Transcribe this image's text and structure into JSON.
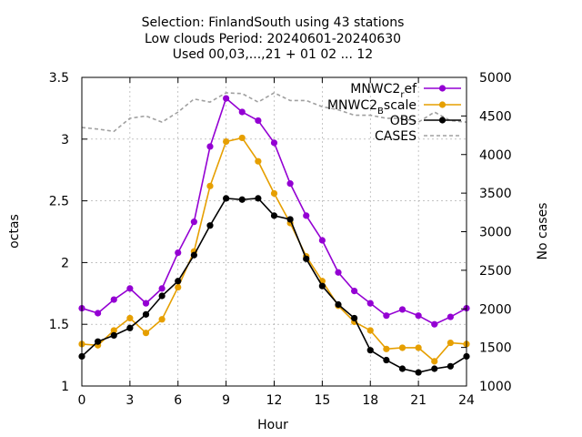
{
  "chart_data": {
    "type": "line",
    "title_lines": [
      "Selection: FinlandSouth using    43 stations",
      "Low clouds   Period: 20240601-20240630",
      "Used 00,03,...,21 + 01 02 ... 12"
    ],
    "xlabel": "Hour",
    "ylabel": "octas",
    "y2label": "No cases",
    "xlim": [
      0,
      24
    ],
    "ylim": [
      1,
      3.5
    ],
    "y2lim": [
      1000,
      5000
    ],
    "x_ticks": [
      "0",
      "3",
      "6",
      "9",
      "12",
      "15",
      "18",
      "21",
      "24"
    ],
    "y_ticks": [
      "1",
      "1.5",
      "2",
      "2.5",
      "3",
      "3.5"
    ],
    "y2_ticks": [
      "1000",
      "1500",
      "2000",
      "2500",
      "3000",
      "3500",
      "4000",
      "4500",
      "5000"
    ],
    "grid": true,
    "legend_position": "top-right",
    "x": [
      0,
      1,
      2,
      3,
      4,
      5,
      6,
      7,
      8,
      9,
      10,
      11,
      12,
      13,
      14,
      15,
      16,
      17,
      18,
      19,
      20,
      21,
      22,
      23,
      24
    ],
    "series": [
      {
        "name": "MNWC2_ref",
        "legend_main": "MNWC2",
        "legend_sub": "r",
        "legend_tail": "ef",
        "color": "#9400d3",
        "marker": "circle",
        "axis": "y",
        "values": [
          1.63,
          1.59,
          1.7,
          1.79,
          1.67,
          1.79,
          2.08,
          2.33,
          2.94,
          3.33,
          3.22,
          3.15,
          2.97,
          2.64,
          2.38,
          2.18,
          1.92,
          1.77,
          1.67,
          1.57,
          1.62,
          1.57,
          1.5,
          1.56,
          1.63
        ]
      },
      {
        "name": "MNWC2_Bscale",
        "legend_main": "MNWC2",
        "legend_sub": "B",
        "legend_tail": "scale",
        "color": "#e69f00",
        "marker": "circle",
        "axis": "y",
        "values": [
          1.34,
          1.33,
          1.45,
          1.55,
          1.43,
          1.54,
          1.8,
          2.09,
          2.62,
          2.98,
          3.01,
          2.82,
          2.56,
          2.32,
          2.05,
          1.85,
          1.65,
          1.52,
          1.45,
          1.3,
          1.31,
          1.31,
          1.2,
          1.35,
          1.34
        ]
      },
      {
        "name": "OBS",
        "legend_main": "OBS",
        "legend_sub": "",
        "legend_tail": "",
        "color": "#000000",
        "marker": "circle",
        "axis": "y",
        "values": [
          1.24,
          1.36,
          1.41,
          1.47,
          1.58,
          1.73,
          1.85,
          2.06,
          2.3,
          2.52,
          2.51,
          2.52,
          2.38,
          2.35,
          2.03,
          1.81,
          1.66,
          1.55,
          1.29,
          1.21,
          1.14,
          1.11,
          1.14,
          1.16,
          1.24
        ]
      },
      {
        "name": "CASES",
        "legend_main": "CASES",
        "legend_sub": "",
        "legend_tail": "",
        "color": "#a0a0a0",
        "marker": "none",
        "dashed": true,
        "axis": "y2",
        "x": [
          0,
          1,
          2,
          3,
          4,
          5,
          6,
          7,
          8,
          9,
          10,
          11,
          12,
          13,
          14,
          15,
          16,
          17,
          18,
          19,
          20,
          21,
          22,
          23,
          24
        ],
        "values": [
          4350,
          4330,
          4300,
          4470,
          4500,
          4420,
          4550,
          4720,
          4680,
          4800,
          4790,
          4680,
          4800,
          4700,
          4700,
          4620,
          4580,
          4510,
          4510,
          4470,
          4470,
          4420,
          4550,
          4440,
          4420
        ]
      }
    ]
  }
}
